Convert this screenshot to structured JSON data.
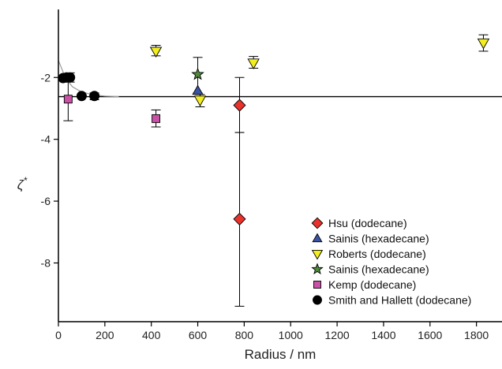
{
  "chart_data": {
    "type": "scatter",
    "xlabel": "Radius / nm",
    "ylabel_symbol": "ζ",
    "ylabel_superscript": "*",
    "xlim": [
      0,
      1910
    ],
    "ylim": [
      -9.9,
      0.2
    ],
    "x_ticks": [
      0,
      200,
      400,
      600,
      800,
      1000,
      1200,
      1400,
      1600,
      1800
    ],
    "y_ticks": [
      -2,
      -4,
      -6,
      -8
    ],
    "grid": false,
    "legend_position": "bottom-right",
    "reference_line": {
      "y": -2.62
    },
    "fit_curve": [
      [
        0,
        -1.45
      ],
      [
        30,
        -2.0
      ],
      [
        60,
        -2.3
      ],
      [
        100,
        -2.47
      ],
      [
        150,
        -2.56
      ],
      [
        200,
        -2.6
      ],
      [
        260,
        -2.62
      ]
    ],
    "series": [
      {
        "name": "Hsu (dodecane)",
        "marker": "diamond",
        "color": "#e8322b",
        "points": [
          {
            "x": 780,
            "y": -2.9,
            "err_low": -3.78,
            "err_high": -2.0
          },
          {
            "x": 780,
            "y": -6.58,
            "err_low": -9.4,
            "err_high": -3.78
          }
        ]
      },
      {
        "name": "Sainis (hexadecane)",
        "marker": "triangle-up",
        "color": "#3a54a4",
        "points": [
          {
            "x": 600,
            "y": -2.43
          }
        ]
      },
      {
        "name": "Roberts (dodecane)",
        "marker": "triangle-down",
        "color": "#f2ee20",
        "points": [
          {
            "x": 420,
            "y": -1.15,
            "err_low": -1.3,
            "err_high": -0.96
          },
          {
            "x": 610,
            "y": -2.73,
            "err_low": -2.95,
            "err_high": -2.55
          },
          {
            "x": 840,
            "y": -1.53,
            "err_low": -1.7,
            "err_high": -1.32
          },
          {
            "x": 1830,
            "y": -0.88,
            "err_low": -1.15,
            "err_high": -0.62
          }
        ]
      },
      {
        "name": "Sainis (hexadecane)",
        "marker": "star",
        "color": "#4f8a3c",
        "points": [
          {
            "x": 600,
            "y": -1.9,
            "err_low": -2.5,
            "err_high": -1.35
          }
        ]
      },
      {
        "name": "Kemp (dodecane)",
        "marker": "square",
        "color": "#c951a6",
        "points": [
          {
            "x": 42,
            "y": -2.7,
            "err_low": -3.4,
            "err_high": -2.0
          },
          {
            "x": 420,
            "y": -3.33,
            "err_low": -3.6,
            "err_high": -3.05
          }
        ]
      },
      {
        "name": "Smith and Hallett (dodecane)",
        "marker": "circle",
        "color": "#000000",
        "points": [
          {
            "x": 20,
            "y": -2.02
          },
          {
            "x": 35,
            "y": -2.0
          },
          {
            "x": 50,
            "y": -2.0,
            "err_low": -2.15,
            "err_high": -1.85
          },
          {
            "x": 100,
            "y": -2.6
          },
          {
            "x": 155,
            "y": -2.6,
            "err_low": -2.72,
            "err_high": -2.5
          }
        ]
      }
    ]
  }
}
